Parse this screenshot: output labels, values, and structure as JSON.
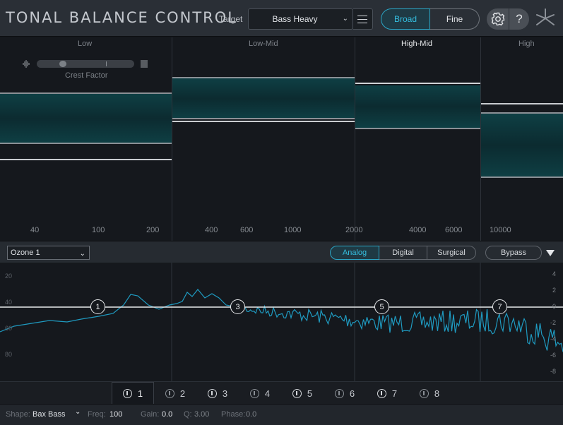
{
  "header": {
    "title": "TONAL BALANCE CONTROL",
    "target_label": "Target",
    "target_value": "Bass Heavy",
    "broad_label": "Broad",
    "fine_label": "Fine",
    "help_label": "?",
    "accent_color": "#2ba6c6"
  },
  "bands": {
    "low": "Low",
    "low_mid": "Low-Mid",
    "high_mid": "High-Mid",
    "high": "High",
    "active": "High-Mid",
    "crest_factor_label": "Crest Factor",
    "freq_labels": [
      "40",
      "100",
      "200",
      "400",
      "600",
      "1000",
      "2000",
      "4000",
      "6000",
      "10000"
    ]
  },
  "controls": {
    "preset_value": "Ozone 1",
    "analog_label": "Analog",
    "digital_label": "Digital",
    "surgical_label": "Surgical",
    "bypass_label": "Bypass",
    "selected_mode": "Analog"
  },
  "eq": {
    "db_left": [
      "20",
      "40",
      "60",
      "80"
    ],
    "db_right": [
      "4",
      "2",
      "0",
      "-2",
      "-4",
      "-6",
      "-8"
    ],
    "nodes": [
      "1",
      "3",
      "5",
      "7"
    ]
  },
  "tabs": [
    "1",
    "2",
    "3",
    "4",
    "5",
    "6",
    "7",
    "8"
  ],
  "active_tab": "1",
  "params": {
    "shape_label": "Shape:",
    "shape_value": "Bax Bass",
    "freq_label": "Freq:",
    "freq_value": "100",
    "gain_label": "Gain:",
    "gain_value": "0.0",
    "q_label": "Q:",
    "q_value": "3.00",
    "phase_label": "Phase:",
    "phase_value": "0.0"
  }
}
